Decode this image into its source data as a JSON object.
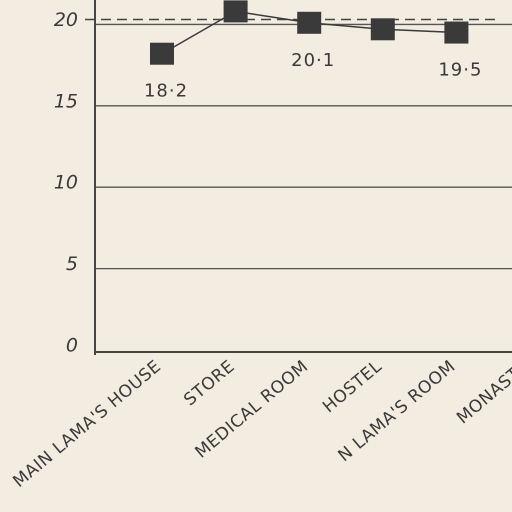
{
  "chart_data": {
    "type": "line",
    "categories": [
      "MAIN LAMA'S HOUSE",
      "STORE",
      "MEDICAL ROOM",
      "HOSTEL",
      "N LAMA'S ROOM",
      "MONASTE"
    ],
    "values": [
      18.2,
      20.8,
      20.1,
      19.7,
      19.5,
      null
    ],
    "value_labels": [
      "18·2",
      null,
      "20·1",
      null,
      "19·5",
      null
    ],
    "color": "#3a3a3a",
    "ylim": [
      0,
      21.5
    ],
    "yticks": [
      0,
      5,
      10,
      15,
      20
    ],
    "grid": true,
    "reference_line": 20.3
  }
}
